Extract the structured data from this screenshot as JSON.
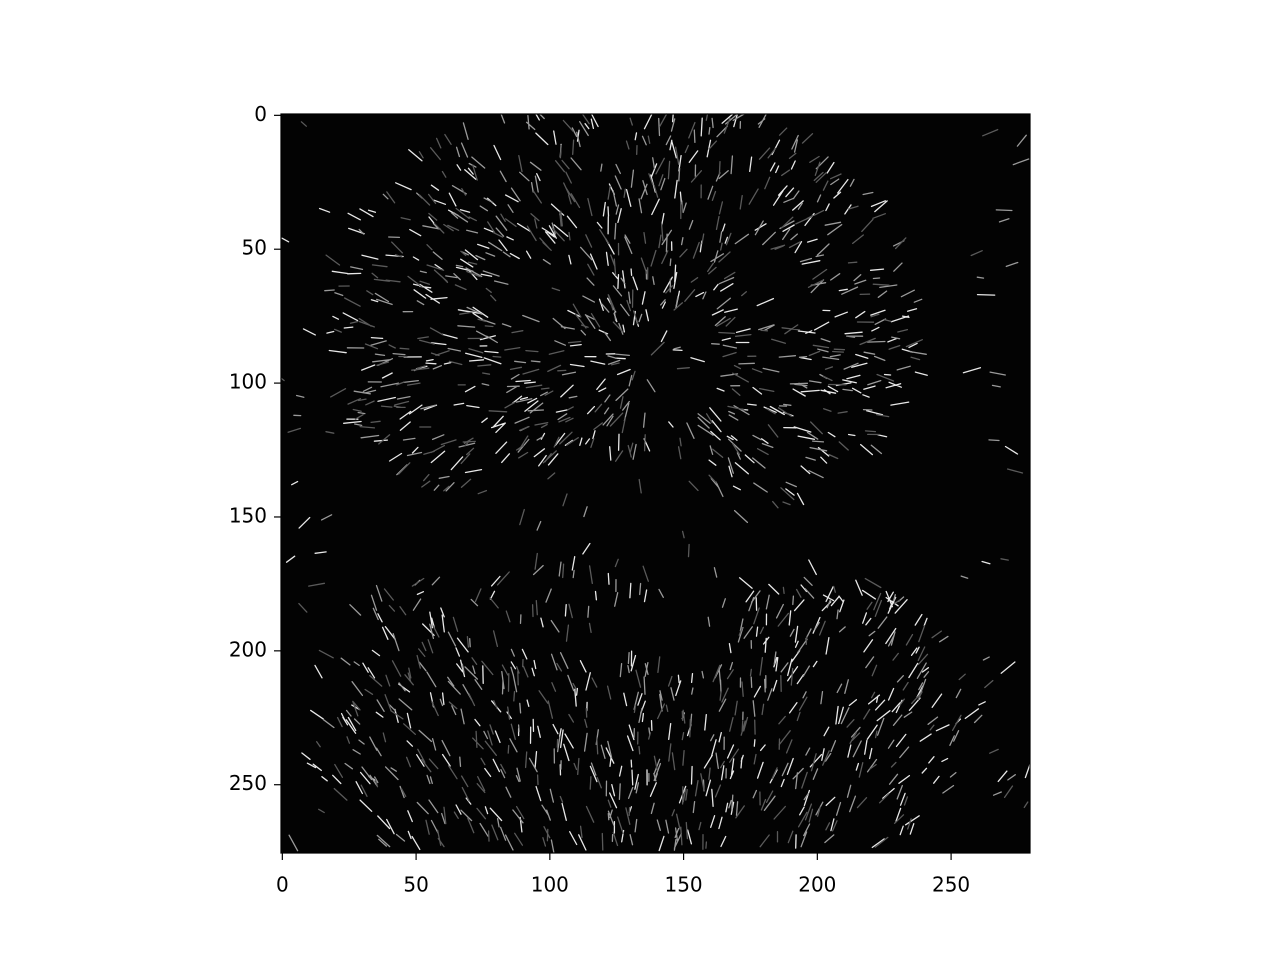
{
  "chart_data": {
    "type": "image",
    "xlim": [
      -0.5,
      279.5
    ],
    "ylim": [
      275.5,
      -0.5
    ],
    "xticks": [
      0,
      50,
      100,
      150,
      200,
      250
    ],
    "yticks": [
      0,
      50,
      100,
      150,
      200,
      250
    ]
  }
}
